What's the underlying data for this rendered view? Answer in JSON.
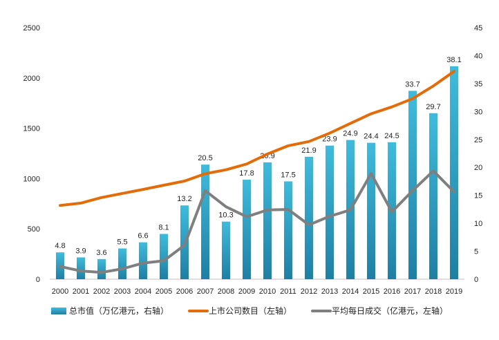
{
  "chart_data": {
    "type": "bar",
    "categories": [
      "2000",
      "2001",
      "2002",
      "2003",
      "2004",
      "2005",
      "2006",
      "2007",
      "2008",
      "2009",
      "2010",
      "2011",
      "2012",
      "2013",
      "2014",
      "2015",
      "2016",
      "2017",
      "2018",
      "2019"
    ],
    "series": [
      {
        "name": "总市值（万亿港元，右轴）",
        "kind": "bar",
        "axis": "right",
        "color": "#2ea3c6",
        "values": [
          4.8,
          3.9,
          3.6,
          5.5,
          6.6,
          8.1,
          13.2,
          20.5,
          10.3,
          17.8,
          20.9,
          17.5,
          21.9,
          23.9,
          24.9,
          24.4,
          24.5,
          33.7,
          29.7,
          38.1
        ],
        "labels": [
          "4.8",
          "3.9",
          "3.6",
          "5.5",
          "6.6",
          "8.1",
          "13.2",
          "20.5",
          "10.3",
          "17.8",
          "20.9",
          "17.5",
          "21.9",
          "23.9",
          "24.9",
          "24.4",
          "24.5",
          "33.7",
          "29.7",
          "38.1"
        ]
      },
      {
        "name": "上市公司数目（左轴）",
        "kind": "line",
        "axis": "left",
        "color": "#e36c0a",
        "values": [
          733,
          756,
          812,
          852,
          892,
          934,
          975,
          1048,
          1087,
          1145,
          1244,
          1326,
          1368,
          1451,
          1548,
          1644,
          1712,
          1794,
          1920,
          2066
        ]
      },
      {
        "name": "平均每日成交（亿港元，左轴）",
        "kind": "line",
        "axis": "left",
        "color": "#7f7f7f",
        "values": [
          126,
          82,
          67,
          103,
          160,
          183,
          338,
          880,
          720,
          620,
          688,
          693,
          540,
          625,
          688,
          1050,
          668,
          880,
          1076,
          868
        ]
      }
    ],
    "left_axis": {
      "min": 0,
      "max": 2500,
      "ticks": [
        "0",
        "500",
        "1000",
        "1500",
        "2000",
        "2500"
      ]
    },
    "right_axis": {
      "min": 0,
      "max": 45,
      "ticks": [
        "0",
        "5",
        "10",
        "15",
        "20",
        "25",
        "30",
        "35",
        "40",
        "45"
      ]
    },
    "grid": false,
    "legend_position": "bottom"
  }
}
